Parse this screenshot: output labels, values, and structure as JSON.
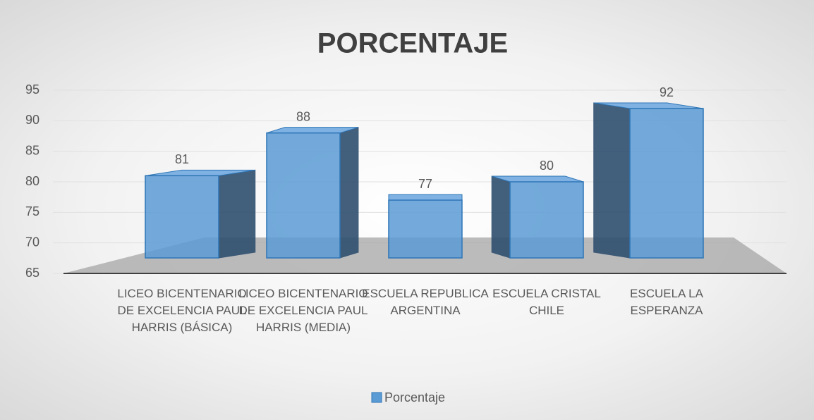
{
  "chart_data": {
    "type": "bar3d",
    "title": "PORCENTAJE",
    "categories": [
      "LICEO BICENTENARIO DE EXCELENCIA PAUL HARRIS (BÁSICA)",
      "LICEO BICENTENARIO DE EXCELENCIA PAUL HARRIS (MEDIA)",
      "ESCUELA REPUBLICA ARGENTINA",
      "ESCUELA CRISTAL CHILE",
      "ESCUELA LA ESPERANZA"
    ],
    "series": [
      {
        "name": "Porcentaje",
        "color": "#5b9bd5",
        "values": [
          81,
          88,
          77,
          80,
          92
        ]
      }
    ],
    "ylim": [
      65,
      95
    ],
    "yticks": [
      65,
      70,
      75,
      80,
      85,
      90,
      95
    ],
    "grid": true,
    "legend": "bottom"
  }
}
